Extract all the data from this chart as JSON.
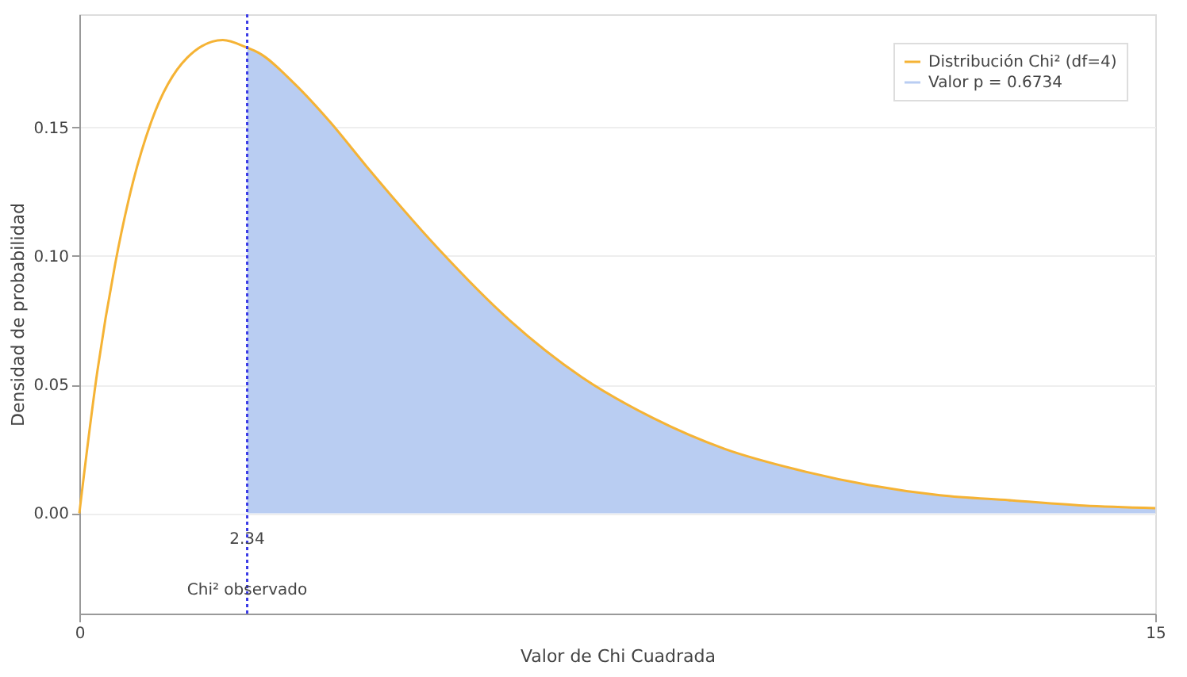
{
  "chart_data": {
    "type": "line",
    "xlabel": "Valor de Chi Cuadrada",
    "ylabel": "Densidad de probabilidad",
    "xlim": [
      0,
      15
    ],
    "ylim": [
      -0.039,
      0.194
    ],
    "xticks": [
      0,
      15
    ],
    "yticks": [
      {
        "value": 0,
        "label": "0.00"
      },
      {
        "value": 0.05,
        "label": "0.05"
      },
      {
        "value": 0.1,
        "label": "0.10"
      },
      {
        "value": 0.15,
        "label": "0.15"
      }
    ],
    "grid": "y",
    "legend": "top right",
    "marker": "none",
    "line_style": "solid",
    "series": [
      {
        "name": "Distribución Chi² (df=4)",
        "color": "#f5b335",
        "x": [
          0,
          0.25,
          0.5,
          0.75,
          1,
          1.5,
          2,
          2.34,
          2.5,
          3,
          3.5,
          4,
          5,
          6,
          7,
          8,
          9,
          10,
          11,
          12,
          13,
          14,
          15
        ],
        "values": [
          0,
          0.055,
          0.097,
          0.129,
          0.152,
          0.177,
          0.184,
          0.181,
          0.179,
          0.167,
          0.152,
          0.135,
          0.103,
          0.075,
          0.053,
          0.037,
          0.025,
          0.017,
          0.011,
          0.007,
          0.005,
          0.003,
          0.002
        ]
      },
      {
        "name": "Valor p = 0.6734",
        "type": "area",
        "color": "#b9cdf2",
        "x": [
          2.34,
          2.5,
          3,
          3.5,
          4,
          5,
          6,
          7,
          8,
          9,
          10,
          11,
          12,
          13,
          14,
          15
        ],
        "values": [
          0.181,
          0.179,
          0.167,
          0.152,
          0.135,
          0.103,
          0.075,
          0.053,
          0.037,
          0.025,
          0.017,
          0.011,
          0.007,
          0.005,
          0.003,
          0.002
        ]
      }
    ],
    "ref_lines": [
      {
        "axis": "x",
        "value": 2.34,
        "label": "Chi² observado",
        "color": "#3a3ae6",
        "line_style": "dotted"
      }
    ],
    "annotations": [
      {
        "text": "2.34",
        "x": 2.34,
        "y": -0.01
      }
    ]
  }
}
